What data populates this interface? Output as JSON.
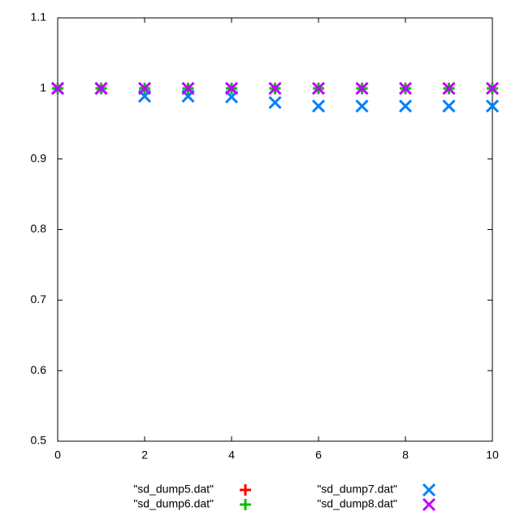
{
  "chart_data": {
    "type": "scatter",
    "x": [
      0,
      1,
      2,
      3,
      4,
      5,
      6,
      7,
      8,
      9,
      10
    ],
    "series": [
      {
        "name": "\"sd_dump5.dat\"",
        "color": "#ff0000",
        "marker": "plus",
        "values": [
          1,
          1,
          1,
          1,
          1,
          1,
          1,
          1,
          1,
          1,
          1
        ]
      },
      {
        "name": "\"sd_dump6.dat\"",
        "color": "#00c000",
        "marker": "plus",
        "values": [
          1,
          1,
          1,
          1,
          1,
          1,
          1,
          1,
          1,
          1,
          1
        ]
      },
      {
        "name": "\"sd_dump7.dat\"",
        "color": "#0080ff",
        "marker": "cross",
        "values": [
          1,
          1,
          0.989,
          0.989,
          0.988,
          0.98,
          0.975,
          0.975,
          0.975,
          0.975,
          0.975
        ]
      },
      {
        "name": "\"sd_dump8.dat\"",
        "color": "#c000ff",
        "marker": "cross",
        "values": [
          1,
          1,
          1,
          1,
          1,
          1,
          1,
          1,
          1,
          1,
          1
        ]
      }
    ],
    "xlim": [
      0,
      10
    ],
    "xticks": [
      0,
      2,
      4,
      6,
      8,
      10
    ],
    "ylim": [
      0.5,
      1.1
    ],
    "yticks": [
      0.5,
      0.6,
      0.7,
      0.8,
      0.9,
      1,
      1.1
    ],
    "grid": false,
    "legend": "bottom"
  }
}
